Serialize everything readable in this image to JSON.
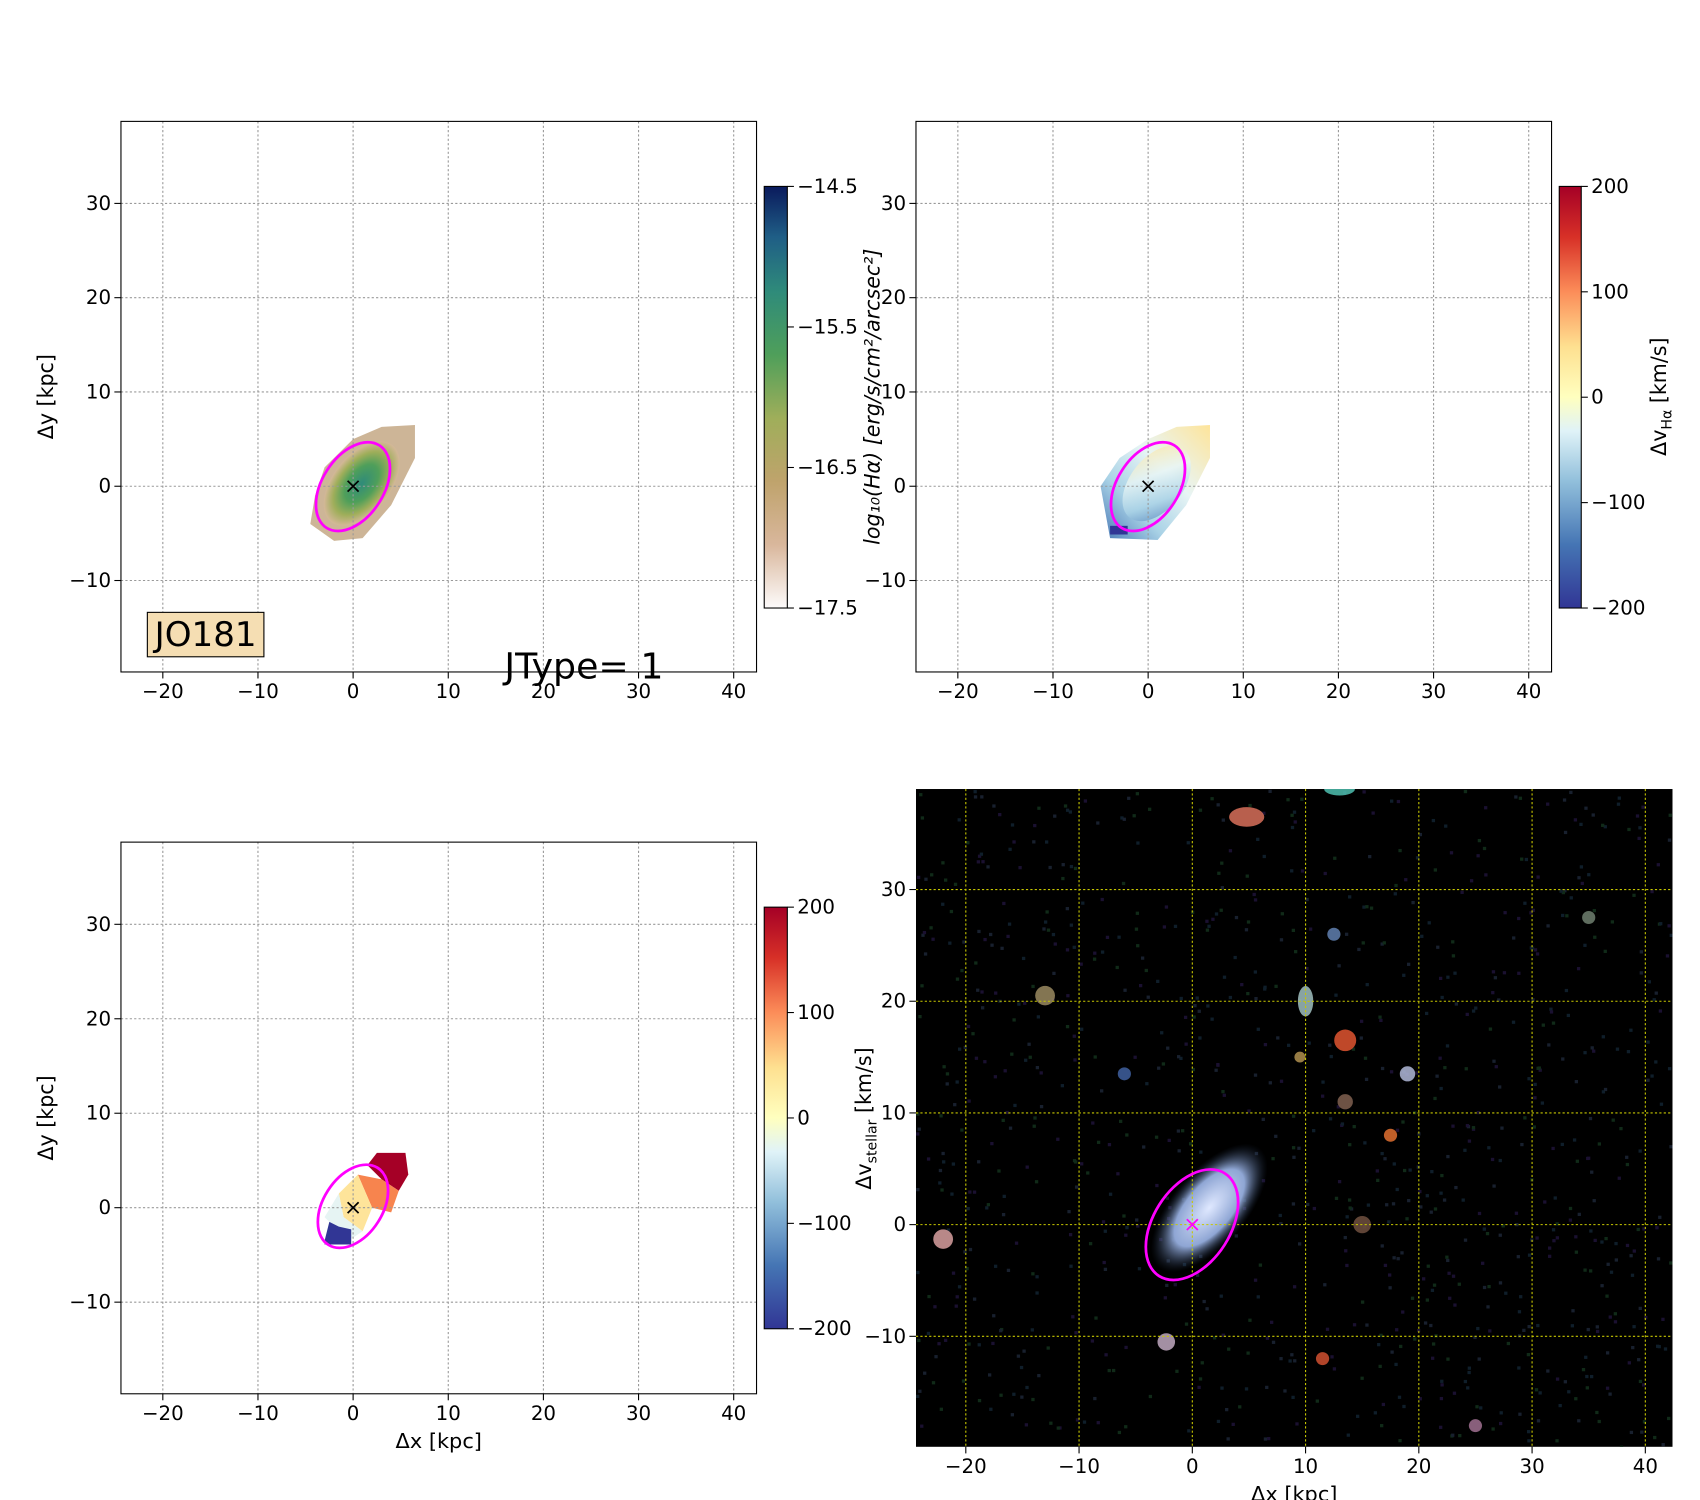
{
  "chart_data": [
    {
      "type": "map",
      "xlim": [
        -24.4,
        42.4
      ],
      "ylim": [
        -19.7,
        38.7
      ],
      "xticks": [
        {
          "value": -20,
          "label": "−20"
        },
        {
          "value": -10,
          "label": "−10"
        },
        0,
        10,
        20,
        30,
        40
      ],
      "yticks": [
        {
          "value": -10,
          "label": "−10"
        },
        0,
        10,
        20,
        30
      ],
      "ylabel": "Δy [kpc]",
      "grid": true,
      "grid_color": "#999999",
      "colorbar": {
        "label": {
          "main": "log₁₀(Hα) [erg/s/cm²/arcsec²]"
        },
        "lim": [
          -17.5,
          -14.5
        ],
        "ticks": [
          {
            "value": -17.5,
            "label": "−17.5"
          },
          {
            "value": -16.5,
            "label": "−16.5"
          },
          {
            "value": -15.5,
            "label": "−15.5"
          },
          {
            "value": -14.5,
            "label": "−14.5"
          }
        ]
      },
      "annotations": [
        "JO181",
        "JType= 1"
      ]
    },
    {
      "type": "map",
      "xlim": [
        -24.4,
        42.4
      ],
      "ylim": [
        -19.7,
        38.7
      ],
      "xticks": [
        {
          "value": -20,
          "label": "−20"
        },
        {
          "value": -10,
          "label": "−10"
        },
        0,
        10,
        20,
        30,
        40
      ],
      "yticks": [
        {
          "value": -10,
          "label": "−10"
        },
        0,
        10,
        20,
        30
      ],
      "grid": true,
      "grid_color": "#999999",
      "colorbar": {
        "label": {
          "main": "Δv",
          "sub": "Hα",
          "unit": " [km/s]"
        },
        "lim": [
          -200,
          200
        ],
        "ticks": [
          {
            "value": -200,
            "label": "−200"
          },
          {
            "value": -100,
            "label": "−100"
          },
          0,
          100,
          200
        ]
      }
    },
    {
      "type": "map",
      "xlim": [
        -24.4,
        42.4
      ],
      "ylim": [
        -19.7,
        38.7
      ],
      "xticks": [
        {
          "value": -20,
          "label": "−20"
        },
        {
          "value": -10,
          "label": "−10"
        },
        0,
        10,
        20,
        30,
        40
      ],
      "yticks": [
        {
          "value": -10,
          "label": "−10"
        },
        0,
        10,
        20,
        30
      ],
      "xlabel": "Δx [kpc]",
      "ylabel": "Δy [kpc]",
      "grid": true,
      "grid_color": "#999999",
      "colorbar": {
        "label": {
          "main": "Δv",
          "sub": "stellar",
          "unit": " [km/s]"
        },
        "lim": [
          -200,
          200
        ],
        "ticks": [
          {
            "value": -200,
            "label": "−200"
          },
          {
            "value": -100,
            "label": "−100"
          },
          0,
          100,
          200
        ]
      }
    },
    {
      "type": "image",
      "xlim": [
        -24.4,
        42.4
      ],
      "ylim": [
        -19.9,
        39.0
      ],
      "xticks": [
        {
          "value": -20,
          "label": "−20"
        },
        {
          "value": -10,
          "label": "−10"
        },
        0,
        10,
        20,
        30,
        40
      ],
      "yticks": [
        {
          "value": -10,
          "label": "−10"
        },
        0,
        10,
        20,
        30
      ],
      "xlabel": "Δx [kpc]",
      "grid": true,
      "grid_color": "#c8c800"
    }
  ]
}
